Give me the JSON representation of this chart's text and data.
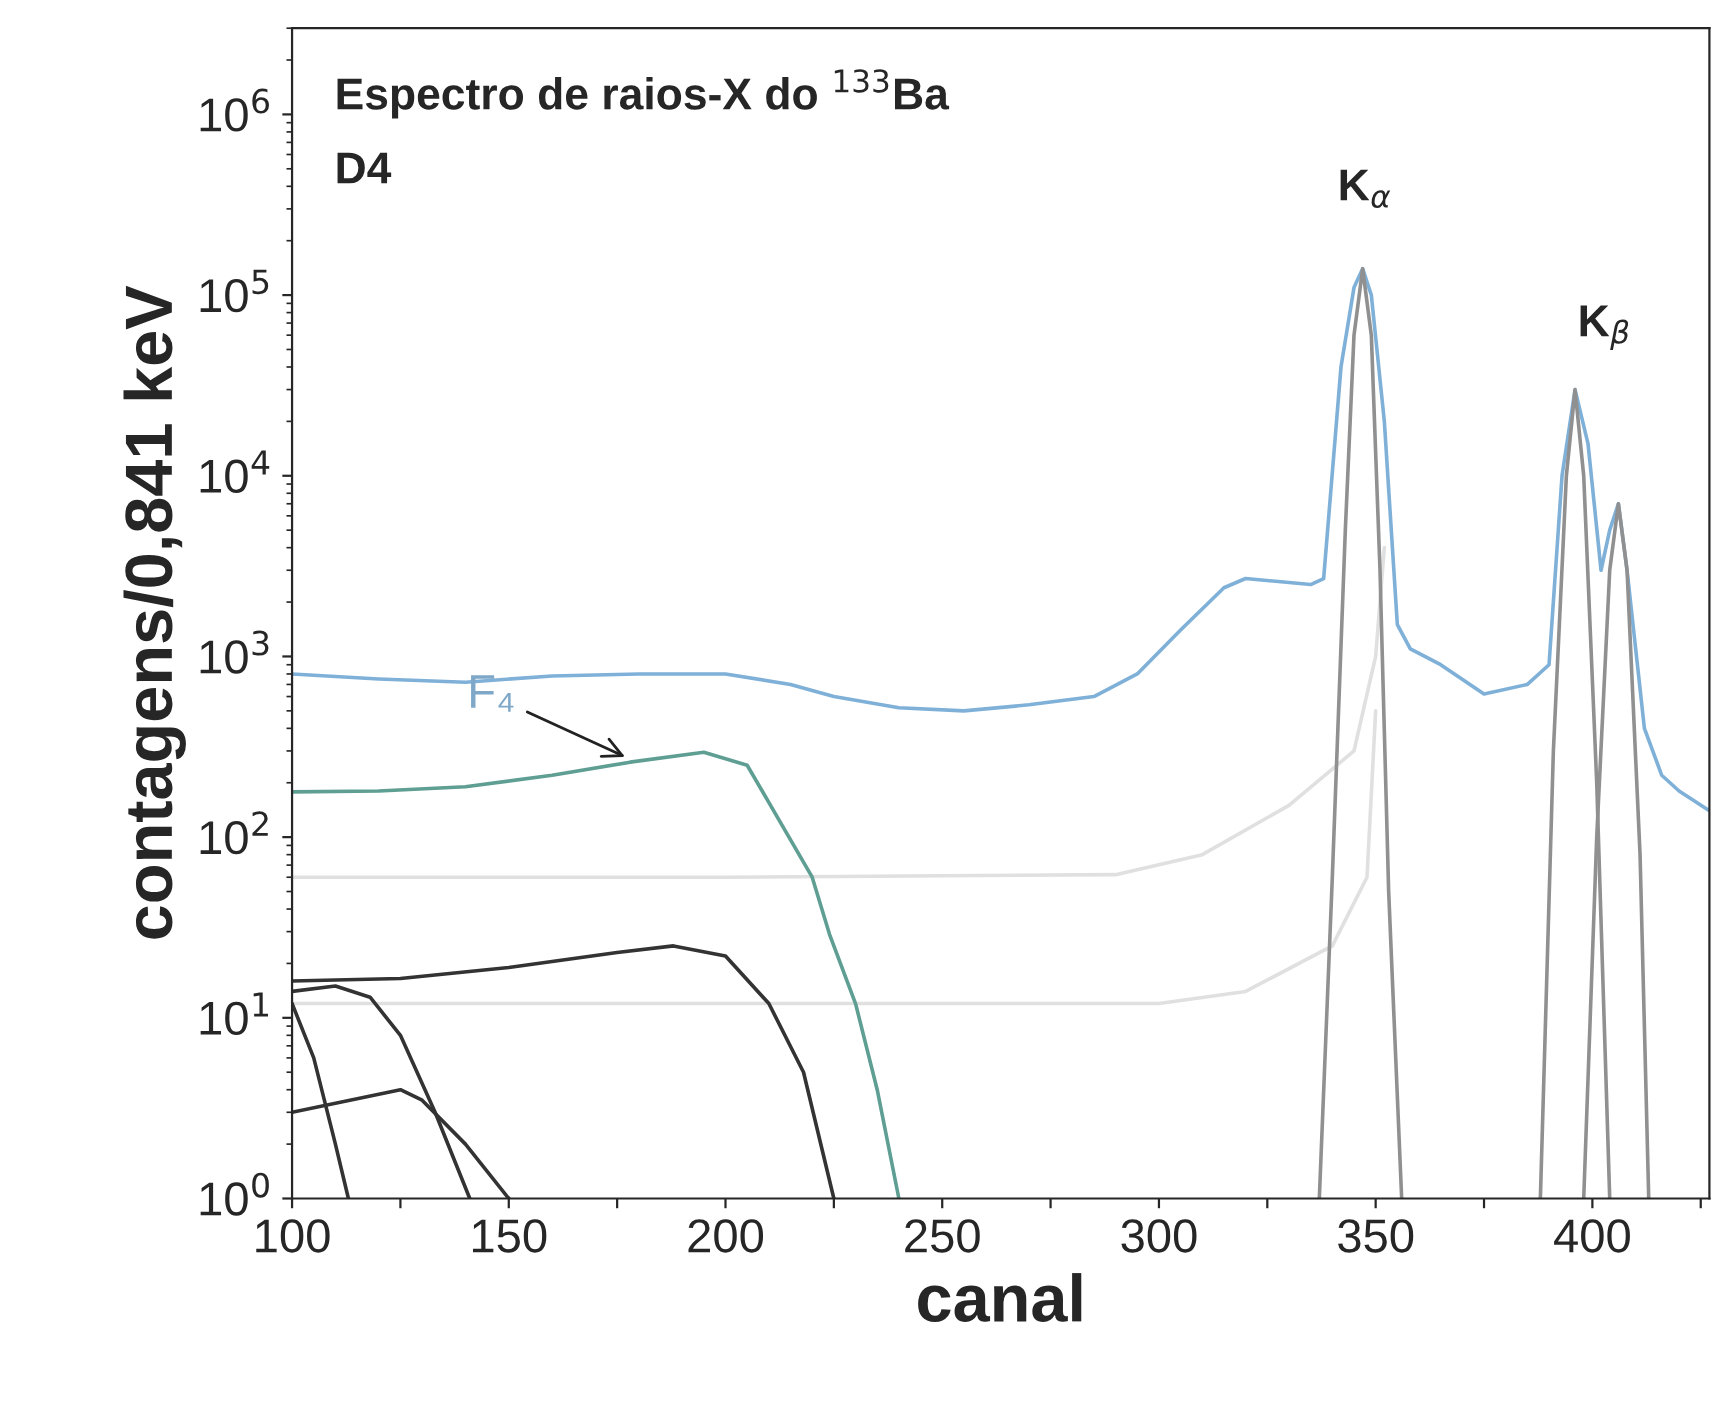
{
  "chart_data": {
    "type": "line",
    "title": "Espectro de raios-X do $^{133}$Ba",
    "subtitle": "D4",
    "xlabel": "canal",
    "ylabel": "contagens/0,841 keV",
    "log": "y",
    "grid": false,
    "legend": false,
    "xlim": [
      100,
      427
    ],
    "xticks": [
      100,
      {
        "value": 125,
        "label": null
      },
      150,
      {
        "value": 175,
        "label": null
      },
      200,
      {
        "value": 225,
        "label": null
      },
      250,
      {
        "value": 275,
        "label": null
      },
      300,
      {
        "value": 325,
        "label": null
      },
      350,
      {
        "value": 375,
        "label": null
      },
      400,
      {
        "value": 425,
        "label": null
      }
    ],
    "ylim": [
      1,
      3000000
    ],
    "yticks": [
      {
        "value": 1,
        "label": "10$^{0}$"
      },
      {
        "value": 10,
        "label": "10$^{1}$"
      },
      {
        "value": 100,
        "label": "10$^{2}$"
      },
      {
        "value": 1000,
        "label": "10$^{3}$"
      },
      {
        "value": 10000,
        "label": "10$^{4}$"
      },
      {
        "value": 100000,
        "label": "10$^{5}$"
      },
      {
        "value": 1000000,
        "label": "10$^{6}$"
      }
    ],
    "series": [
      {
        "color": "#e0e0e0",
        "x": [
          100,
          200,
          290,
          310,
          330,
          345,
          350,
          352
        ],
        "values": [
          60,
          60,
          62,
          80,
          150,
          300,
          1000,
          4000
        ]
      },
      {
        "color": "#e0e0e0",
        "x": [
          100,
          200,
          300,
          320,
          340,
          348,
          350
        ],
        "values": [
          12,
          12,
          12,
          14,
          25,
          60,
          500
        ]
      },
      {
        "color": "#7fb0d8",
        "x": [
          100,
          120,
          140,
          160,
          180,
          200,
          215,
          225,
          240,
          255,
          270,
          285,
          295,
          305,
          315,
          320,
          335,
          338,
          342,
          345,
          347,
          349,
          352,
          355,
          358,
          365,
          375,
          385,
          390,
          393,
          396,
          399,
          402,
          404,
          406,
          408,
          412,
          416,
          420,
          427
        ],
        "values": [
          800,
          750,
          720,
          780,
          800,
          800,
          700,
          600,
          520,
          500,
          540,
          600,
          800,
          1400,
          2400,
          2700,
          2500,
          2700,
          40000,
          110000,
          140000,
          100000,
          20000,
          1500,
          1100,
          900,
          620,
          700,
          900,
          10000,
          30000,
          15000,
          3000,
          5000,
          7000,
          3000,
          400,
          220,
          180,
          140
        ]
      },
      {
        "color": "#909090",
        "x": [
          337,
          340,
          343,
          345,
          347,
          349,
          351,
          353,
          356
        ],
        "values": [
          1,
          60,
          5000,
          60000,
          140000,
          60000,
          3000,
          50,
          1
        ]
      },
      {
        "color": "#909090",
        "x": [
          388,
          391,
          394,
          396,
          398,
          401,
          404
        ],
        "values": [
          1,
          300,
          10000,
          30000,
          10000,
          200,
          1
        ]
      },
      {
        "color": "#909090",
        "x": [
          398,
          401,
          404,
          406,
          408,
          411,
          413
        ],
        "values": [
          1,
          100,
          3000,
          7000,
          3000,
          80,
          1
        ]
      },
      {
        "color": "#5f9e92",
        "x": [
          100,
          120,
          140,
          160,
          178,
          195,
          205,
          213,
          220,
          224,
          230,
          235,
          240
        ],
        "values": [
          178,
          180,
          190,
          220,
          260,
          295,
          250,
          117,
          60,
          29,
          12,
          4,
          1
        ]
      },
      {
        "color": "#333333",
        "x": [
          100,
          125,
          150,
          175,
          188,
          200,
          210,
          218,
          225
        ],
        "values": [
          16,
          16.5,
          19,
          23,
          25,
          22,
          12,
          5,
          1
        ]
      },
      {
        "color": "#333333",
        "x": [
          100,
          110,
          118,
          125,
          133,
          141
        ],
        "values": [
          14,
          15,
          13,
          8,
          3,
          1
        ]
      },
      {
        "color": "#333333",
        "x": [
          100,
          105,
          110,
          113
        ],
        "values": [
          12,
          6,
          2,
          1
        ]
      },
      {
        "color": "#333333",
        "x": [
          100,
          125,
          130,
          140,
          150
        ],
        "values": [
          3,
          4,
          3.5,
          2,
          1
        ]
      }
    ],
    "annotations": [
      "K$_{α}$",
      "K$_{β}$",
      {
        "text": "F₄",
        "x": 178,
        "y": 270
      }
    ]
  }
}
